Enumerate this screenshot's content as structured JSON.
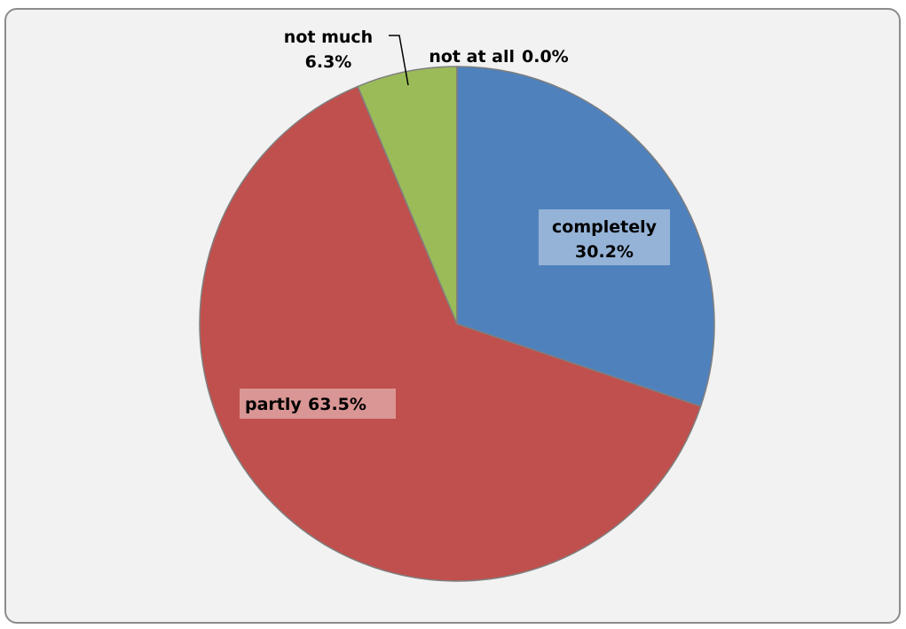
{
  "chart_data": {
    "type": "pie",
    "title": "",
    "legend": "none",
    "slices": [
      {
        "label": "completely",
        "value": 30.2,
        "value_label": "30.2%",
        "color": "#4f81bd",
        "label_bg": "#95b3d7"
      },
      {
        "label": "partly",
        "value": 63.5,
        "value_label": "63.5%",
        "color": "#c0504d",
        "label_bg": "#d99694"
      },
      {
        "label": "not much",
        "value": 6.3,
        "value_label": "6.3%",
        "color": "#9bbb59",
        "label_bg": ""
      },
      {
        "label": "not at all",
        "value": 0.0,
        "value_label": "0.0%",
        "color": "#8064a2",
        "label_bg": ""
      }
    ]
  }
}
